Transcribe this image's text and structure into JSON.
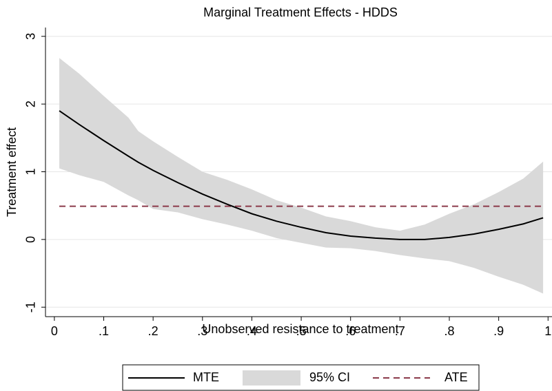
{
  "chart_data": {
    "type": "line",
    "title": "Marginal Treatment Effects - HDDS",
    "x_label": "Unobserved resistance to treatment",
    "y_label": "Treatment effect",
    "xlim": [
      -0.018,
      1.008
    ],
    "ylim": [
      -1.14,
      3.13
    ],
    "xticks": [
      0,
      {
        "value": 0.1,
        "label": ".1"
      },
      {
        "value": 0.2,
        "label": ".2"
      },
      {
        "value": 0.3,
        "label": ".3"
      },
      {
        "value": 0.4,
        "label": ".4"
      },
      {
        "value": 0.5,
        "label": ".5"
      },
      {
        "value": 0.6,
        "label": ".6"
      },
      {
        "value": 0.7,
        "label": ".7"
      },
      {
        "value": 0.8,
        "label": ".8"
      },
      {
        "value": 0.9,
        "label": ".9"
      },
      1
    ],
    "yticks": [
      -1,
      0,
      1,
      2,
      3
    ],
    "grid": true,
    "x": [
      0.01,
      0.05,
      0.1,
      0.15,
      0.17,
      0.2,
      0.25,
      0.3,
      0.35,
      0.4,
      0.45,
      0.5,
      0.55,
      0.6,
      0.65,
      0.7,
      0.75,
      0.8,
      0.85,
      0.9,
      0.95,
      0.99
    ],
    "band": {
      "name": "95% CI",
      "color": "#d9d9d9",
      "upper": [
        2.68,
        2.45,
        2.12,
        1.8,
        1.6,
        1.45,
        1.22,
        1.0,
        0.88,
        0.74,
        0.58,
        0.47,
        0.34,
        0.27,
        0.18,
        0.13,
        0.22,
        0.38,
        0.52,
        0.7,
        0.9,
        1.15
      ],
      "lower": [
        1.05,
        0.95,
        0.85,
        0.65,
        0.58,
        0.45,
        0.4,
        0.3,
        0.22,
        0.13,
        0.02,
        -0.05,
        -0.12,
        -0.13,
        -0.17,
        -0.23,
        -0.28,
        -0.32,
        -0.42,
        -0.55,
        -0.67,
        -0.8
      ]
    },
    "series": [
      {
        "name": "MTE",
        "color": "#000000",
        "values": [
          1.9,
          1.7,
          1.46,
          1.23,
          1.14,
          1.02,
          0.84,
          0.67,
          0.52,
          0.38,
          0.27,
          0.18,
          0.1,
          0.05,
          0.02,
          0.0,
          0.0,
          0.03,
          0.08,
          0.15,
          0.23,
          0.32
        ]
      }
    ],
    "ate": {
      "name": "ATE",
      "color": "#8b3a4a",
      "x": [
        0.01,
        0.99
      ],
      "values": [
        0.49,
        0.49
      ]
    }
  }
}
